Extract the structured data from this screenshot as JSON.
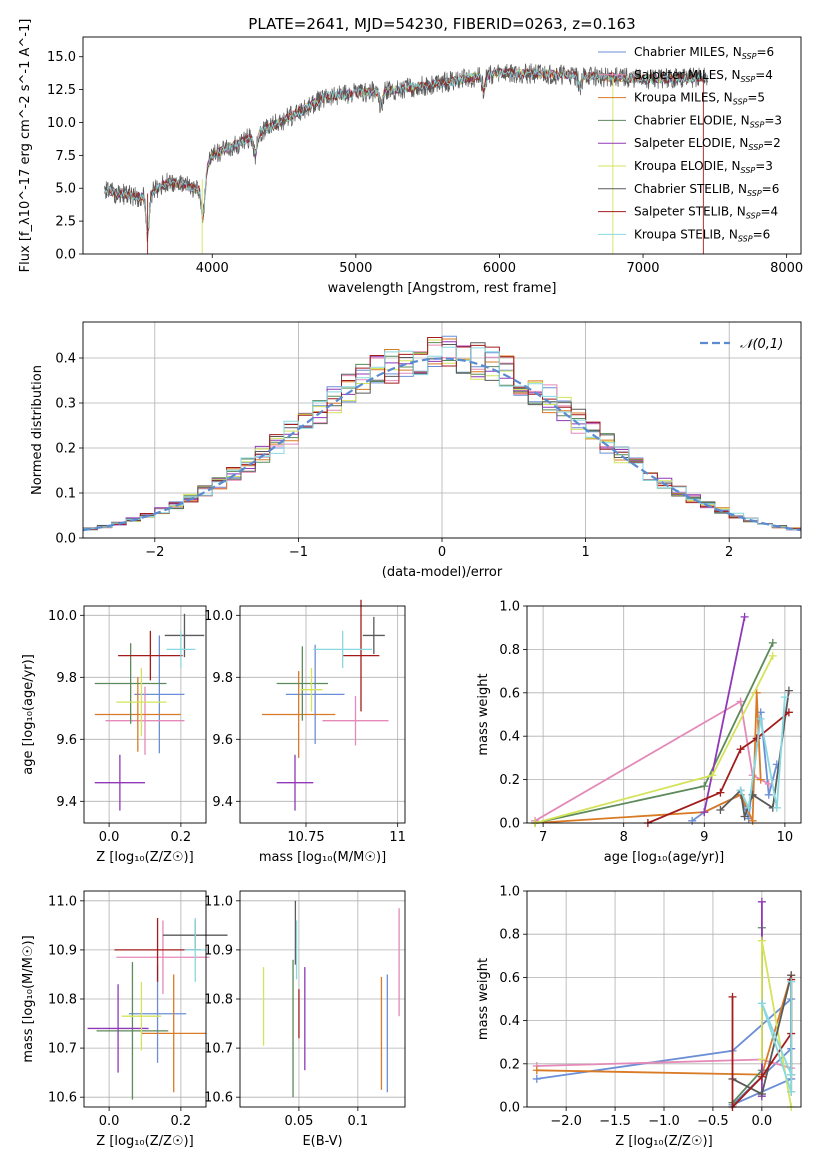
{
  "title": "PLATE=2641, MJD=54230, FIBERID=0263, z=0.163",
  "colors": {
    "Chabrier MILES": "#6b8fd6",
    "Salpeter MILES": "#e48ab8",
    "Kroupa MILES": "#d97a26",
    "Chabrier ELODIE": "#5c8a5a",
    "Salpeter ELODIE": "#8f38b8",
    "Kroupa ELODIE": "#d4e35a",
    "Chabrier STELIB": "#5a5a5a",
    "Salpeter STELIB": "#a31c1c",
    "Kroupa STELIB": "#88d8e0"
  },
  "legend_spectrum": [
    {
      "name": "Chabrier MILES",
      "nssp": "6"
    },
    {
      "name": "Salpeter MILES",
      "nssp": "4"
    },
    {
      "name": "Kroupa MILES",
      "nssp": "5"
    },
    {
      "name": "Chabrier ELODIE",
      "nssp": "3"
    },
    {
      "name": "Salpeter ELODIE",
      "nssp": "2"
    },
    {
      "name": "Kroupa ELODIE",
      "nssp": "3"
    },
    {
      "name": "Chabrier STELIB",
      "nssp": "6"
    },
    {
      "name": "Salpeter STELIB",
      "nssp": "4"
    },
    {
      "name": "Kroupa STELIB",
      "nssp": "6"
    }
  ],
  "chart_data": [
    {
      "id": "spectrum",
      "type": "line",
      "xlabel": "wavelength [Angstrom, rest frame]",
      "ylabel": "Flux [f_λ10^-17 erg cm^-2 s^-1 A^-1]",
      "xlim": [
        3100,
        8100
      ],
      "ylim": [
        0,
        16.5
      ],
      "xticks": [
        4000,
        5000,
        6000,
        7000,
        8000
      ],
      "yticks": [
        0.0,
        2.5,
        5.0,
        7.5,
        10.0,
        12.5,
        15.0
      ],
      "xrange_data": [
        3250,
        7450
      ],
      "continuum": [
        [
          3250,
          4.8
        ],
        [
          3500,
          4.3
        ],
        [
          3700,
          5.5
        ],
        [
          3900,
          4.9
        ],
        [
          4000,
          7.5
        ],
        [
          4200,
          8.5
        ],
        [
          4500,
          10.2
        ],
        [
          4800,
          12.0
        ],
        [
          5200,
          12.4
        ],
        [
          5500,
          12.8
        ],
        [
          6000,
          13.8
        ],
        [
          6500,
          13.6
        ],
        [
          7000,
          13.3
        ],
        [
          7400,
          13.4
        ]
      ],
      "dips": [
        [
          3550,
          3.0
        ],
        [
          3935,
          3.0
        ],
        [
          4300,
          1.5
        ],
        [
          5175,
          1.2
        ],
        [
          5890,
          1.0
        ],
        [
          6560,
          0.8
        ]
      ],
      "legend": "top-right"
    },
    {
      "id": "residuals",
      "type": "histogram",
      "xlabel": "(data-model)/error",
      "ylabel": "Normed distribution",
      "xlim": [
        -2.5,
        2.5
      ],
      "ylim": [
        0,
        0.48
      ],
      "xticks": [
        -2,
        -1,
        0,
        1,
        2
      ],
      "yticks": [
        0.0,
        0.1,
        0.2,
        0.3,
        0.4
      ],
      "bin_width": 0.1,
      "normal_curve": {
        "label": "𝒩(0,1)",
        "color": "#5b8bd0"
      },
      "grid": true,
      "legend": "top-right"
    },
    {
      "id": "age-vs-Z",
      "type": "errorbar",
      "xlabel": "Z [log₁₀(Z/Z☉)]",
      "ylabel": "age  [log₁₀(age/yr)]",
      "xlim": [
        -0.07,
        0.27
      ],
      "ylim": [
        9.33,
        10.03
      ],
      "xticks": [
        0.0,
        0.2
      ],
      "yticks": [
        9.4,
        9.6,
        9.8,
        10.0
      ],
      "points": [
        {
          "model": "Chabrier MILES",
          "x": 0.14,
          "y": 9.745,
          "xerr": 0.07,
          "yerr": 0.19
        },
        {
          "model": "Salpeter MILES",
          "x": 0.1,
          "y": 9.66,
          "xerr": 0.11,
          "yerr": 0.11
        },
        {
          "model": "Kroupa MILES",
          "x": 0.08,
          "y": 9.68,
          "xerr": 0.12,
          "yerr": 0.12
        },
        {
          "model": "Chabrier ELODIE",
          "x": 0.06,
          "y": 9.78,
          "xerr": 0.1,
          "yerr": 0.13
        },
        {
          "model": "Salpeter ELODIE",
          "x": 0.03,
          "y": 9.46,
          "xerr": 0.07,
          "yerr": 0.09
        },
        {
          "model": "Kroupa ELODIE",
          "x": 0.09,
          "y": 9.72,
          "xerr": 0.07,
          "yerr": 0.11
        },
        {
          "model": "Chabrier STELIB",
          "x": 0.21,
          "y": 9.935,
          "xerr": 0.055,
          "yerr": 0.07
        },
        {
          "model": "Salpeter STELIB",
          "x": 0.115,
          "y": 9.87,
          "xerr": 0.09,
          "yerr": 0.08
        },
        {
          "model": "Kroupa STELIB",
          "x": 0.2,
          "y": 9.89,
          "xerr": 0.04,
          "yerr": 0.06
        }
      ]
    },
    {
      "id": "age-vs-mass",
      "type": "errorbar",
      "xlabel": "mass [log₁₀(M/M☉)]",
      "ylabel": "",
      "xlim": [
        10.57,
        11.02
      ],
      "ylim": [
        9.33,
        10.03
      ],
      "xticks": [
        10.75,
        11.0
      ],
      "yticks": [
        9.4,
        9.6,
        9.8,
        10.0
      ],
      "points": [
        {
          "model": "Chabrier MILES",
          "x": 10.775,
          "y": 9.745,
          "xerr": 0.08,
          "yerr": 0.16
        },
        {
          "model": "Salpeter MILES",
          "x": 10.885,
          "y": 9.66,
          "xerr": 0.09,
          "yerr": 0.08
        },
        {
          "model": "Kroupa MILES",
          "x": 10.73,
          "y": 9.68,
          "xerr": 0.1,
          "yerr": 0.14
        },
        {
          "model": "Chabrier ELODIE",
          "x": 10.74,
          "y": 9.78,
          "xerr": 0.07,
          "yerr": 0.12
        },
        {
          "model": "Salpeter ELODIE",
          "x": 10.72,
          "y": 9.46,
          "xerr": 0.05,
          "yerr": 0.09
        },
        {
          "model": "Kroupa ELODIE",
          "x": 10.765,
          "y": 9.76,
          "xerr": 0.03,
          "yerr": 0.07
        },
        {
          "model": "Chabrier STELIB",
          "x": 10.935,
          "y": 9.935,
          "xerr": 0.03,
          "yerr": 0.06
        },
        {
          "model": "Salpeter STELIB",
          "x": 10.9,
          "y": 9.87,
          "xerr": 0.05,
          "yerr": 0.18
        },
        {
          "model": "Kroupa STELIB",
          "x": 10.85,
          "y": 9.89,
          "xerr": 0.08,
          "yerr": 0.06
        }
      ]
    },
    {
      "id": "massweight-vs-age",
      "type": "line",
      "xlabel": "age  [log₁₀(age/yr)]",
      "ylabel": "mass weight",
      "xlim": [
        6.8,
        10.2
      ],
      "ylim": [
        0.0,
        1.0
      ],
      "xticks": [
        7,
        8,
        9,
        10
      ],
      "yticks": [
        0.0,
        0.2,
        0.4,
        0.6,
        0.8,
        1.0
      ],
      "series": [
        {
          "model": "Chabrier MILES",
          "x": [
            8.85,
            9.0,
            9.45,
            9.55,
            9.7,
            9.8,
            9.9
          ],
          "y": [
            0.01,
            0.05,
            0.13,
            0.02,
            0.51,
            0.13,
            0.27
          ]
        },
        {
          "model": "Salpeter MILES",
          "x": [
            6.9,
            9.45,
            9.6,
            9.8
          ],
          "y": [
            0.01,
            0.56,
            0.22,
            0.18
          ]
        },
        {
          "model": "Kroupa MILES",
          "x": [
            6.9,
            9.0,
            9.45,
            9.6,
            9.65,
            9.7
          ],
          "y": [
            0.0,
            0.05,
            0.13,
            0.01,
            0.6,
            0.2
          ]
        },
        {
          "model": "Chabrier ELODIE",
          "x": [
            6.9,
            9.0,
            9.85
          ],
          "y": [
            0.0,
            0.17,
            0.83
          ]
        },
        {
          "model": "Salpeter ELODIE",
          "x": [
            9.0,
            9.5
          ],
          "y": [
            0.05,
            0.95
          ]
        },
        {
          "model": "Kroupa ELODIE",
          "x": [
            6.9,
            9.1,
            9.85
          ],
          "y": [
            0.0,
            0.22,
            0.77
          ]
        },
        {
          "model": "Chabrier STELIB",
          "x": [
            9.2,
            9.45,
            9.5,
            9.6,
            9.85,
            10.05
          ],
          "y": [
            0.06,
            0.15,
            0.03,
            0.13,
            0.07,
            0.61
          ]
        },
        {
          "model": "Salpeter STELIB",
          "x": [
            8.3,
            9.2,
            9.45,
            9.65,
            10.05
          ],
          "y": [
            0.0,
            0.14,
            0.34,
            0.39,
            0.51
          ]
        },
        {
          "model": "Kroupa STELIB",
          "x": [
            9.45,
            9.55,
            9.7,
            9.9,
            10.0
          ],
          "y": [
            0.15,
            0.07,
            0.48,
            0.07,
            0.58
          ]
        }
      ]
    },
    {
      "id": "mass-vs-Z",
      "type": "errorbar",
      "xlabel": "Z [log₁₀(Z/Z☉)]",
      "ylabel": "mass [log₁₀(M/M☉)]",
      "xlim": [
        -0.07,
        0.27
      ],
      "ylim": [
        10.58,
        11.02
      ],
      "xticks": [
        0.0,
        0.2
      ],
      "yticks": [
        10.6,
        10.7,
        10.8,
        10.9,
        11.0
      ],
      "points": [
        {
          "model": "Chabrier MILES",
          "x": 0.135,
          "y": 10.77,
          "xerr": 0.08,
          "yerr": 0.1
        },
        {
          "model": "Salpeter MILES",
          "x": 0.15,
          "y": 10.885,
          "xerr": 0.13,
          "yerr": 0.075
        },
        {
          "model": "Kroupa MILES",
          "x": 0.18,
          "y": 10.73,
          "xerr": 0.09,
          "yerr": 0.12
        },
        {
          "model": "Chabrier ELODIE",
          "x": 0.065,
          "y": 10.735,
          "xerr": 0.1,
          "yerr": 0.14
        },
        {
          "model": "Salpeter ELODIE",
          "x": 0.025,
          "y": 10.74,
          "xerr": 0.085,
          "yerr": 0.09
        },
        {
          "model": "Kroupa ELODIE",
          "x": 0.09,
          "y": 10.765,
          "xerr": 0.055,
          "yerr": 0.07
        },
        {
          "model": "Chabrier STELIB",
          "x": 0.24,
          "y": 10.93,
          "xerr": 0.09,
          "yerr": 0.03
        },
        {
          "model": "Salpeter STELIB",
          "x": 0.135,
          "y": 10.9,
          "xerr": 0.12,
          "yerr": 0.065
        },
        {
          "model": "Kroupa STELIB",
          "x": 0.24,
          "y": 10.9,
          "xerr": 0.03,
          "yerr": 0.065
        }
      ]
    },
    {
      "id": "mass-vs-EBV",
      "type": "errorbar",
      "xlabel": "E(B-V)",
      "ylabel": "",
      "xlim": [
        0.0,
        0.14
      ],
      "ylim": [
        10.58,
        11.02
      ],
      "xticks": [
        0.05,
        0.1
      ],
      "yticks": [
        10.6,
        10.7,
        10.8,
        10.9,
        11.0
      ],
      "points": [
        {
          "model": "Chabrier MILES",
          "x": 0.125,
          "y": 10.73,
          "yerr": 0.12
        },
        {
          "model": "Salpeter MILES",
          "x": 0.135,
          "y": 10.875,
          "yerr": 0.11
        },
        {
          "model": "Kroupa MILES",
          "x": 0.12,
          "y": 10.73,
          "yerr": 0.115
        },
        {
          "model": "Chabrier ELODIE",
          "x": 0.045,
          "y": 10.74,
          "yerr": 0.14
        },
        {
          "model": "Salpeter ELODIE",
          "x": 0.055,
          "y": 10.76,
          "yerr": 0.105
        },
        {
          "model": "Kroupa ELODIE",
          "x": 0.02,
          "y": 10.785,
          "yerr": 0.08
        },
        {
          "model": "Chabrier STELIB",
          "x": 0.047,
          "y": 10.935,
          "yerr": 0.065
        },
        {
          "model": "Salpeter STELIB",
          "x": 0.05,
          "y": 10.77,
          "yerr": 0.05
        },
        {
          "model": "Kroupa STELIB",
          "x": 0.048,
          "y": 10.9,
          "yerr": 0.06
        }
      ]
    },
    {
      "id": "massweight-vs-Z",
      "type": "line",
      "xlabel": "Z [log₁₀(Z/Z☉)]",
      "ylabel": "mass weight",
      "xlim": [
        -2.4,
        0.4
      ],
      "ylim": [
        0.0,
        1.0
      ],
      "xticks": [
        -2.0,
        -1.5,
        -1.0,
        -0.5,
        0.0
      ],
      "yticks": [
        0.0,
        0.2,
        0.4,
        0.6,
        0.8,
        1.0
      ],
      "series": [
        {
          "model": "Chabrier MILES",
          "x": [
            -2.3,
            -0.3,
            0.3,
            0.3,
            -0.3,
            0.3
          ],
          "y": [
            0.13,
            0.26,
            0.5,
            0.13,
            0.01,
            0.27
          ]
        },
        {
          "model": "Salpeter MILES",
          "x": [
            -2.3,
            0.0,
            0.3
          ],
          "y": [
            0.19,
            0.22,
            0.18
          ]
        },
        {
          "model": "Kroupa MILES",
          "x": [
            -2.3,
            0.0,
            0.3,
            0.3
          ],
          "y": [
            0.17,
            0.15,
            0.61,
            0.07
          ]
        },
        {
          "model": "Chabrier ELODIE",
          "x": [
            -0.3,
            0.0,
            0.0
          ],
          "y": [
            0.02,
            0.17,
            0.83
          ]
        },
        {
          "model": "Salpeter ELODIE",
          "x": [
            0.0,
            0.0
          ],
          "y": [
            0.05,
            0.95
          ]
        },
        {
          "model": "Kroupa ELODIE",
          "x": [
            0.0,
            0.0,
            0.3
          ],
          "y": [
            0.22,
            0.77,
            0.0
          ]
        },
        {
          "model": "Chabrier STELIB",
          "x": [
            -0.3,
            0.0,
            0.3,
            0.3
          ],
          "y": [
            0.13,
            0.06,
            0.61,
            0.15
          ]
        },
        {
          "model": "Salpeter STELIB",
          "x": [
            -0.3,
            -0.3,
            0.0,
            0.3,
            0.3
          ],
          "y": [
            0.51,
            0.0,
            0.14,
            0.34,
            0.59
          ]
        },
        {
          "model": "Kroupa STELIB",
          "x": [
            0.3,
            0.3,
            0.0,
            0.3
          ],
          "y": [
            0.58,
            0.07,
            0.48,
            0.15
          ]
        }
      ]
    }
  ]
}
